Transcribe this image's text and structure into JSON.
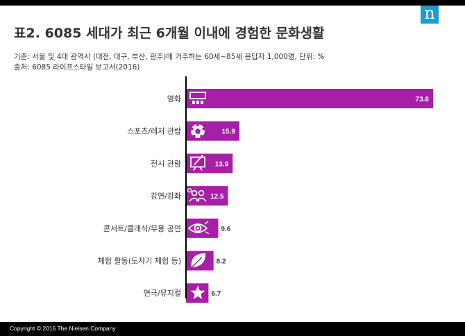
{
  "page": {
    "logo_text": "n",
    "title": "표2. 6085 세대가 최근 6개월 이내에 경험한 문화생활",
    "subtitle_lines": [
      "기준: 서울 및 4대 광역시 (대전, 대구, 부산, 광주)에 거주하는 60세~85세 응답자 1,000명, 단위: %",
      "출처: 6085 라이프스타일 보고서(2016)"
    ],
    "footer": "Copyright © 2016 The Nielsen Company"
  },
  "colors": {
    "bar": "#a61fa6",
    "icon": "#ffffff",
    "label_inside": "#ffffff",
    "label_outside": "#444444",
    "axis": "#000000",
    "logo_bg": "#1d9ad6"
  },
  "chart_data": {
    "type": "bar",
    "orientation": "horizontal",
    "categories": [
      "영화",
      "스포츠/레저 관람",
      "전시 관람",
      "강연/강좌",
      "콘서트/클래식/무용 공연",
      "체험 활동(도자기 체험 등)",
      "연극/뮤지컬"
    ],
    "values": [
      73.6,
      15.9,
      13.9,
      12.5,
      9.6,
      8.2,
      6.7
    ],
    "value_labels": [
      "73.6",
      "15.9",
      "13.9",
      "12.5",
      "9.6",
      "8.2",
      "6.7"
    ],
    "icons": [
      "theater-icon",
      "soccer-ball-icon",
      "easel-icon",
      "audience-icon",
      "eye-icon",
      "leaf-icon",
      "star-icon"
    ],
    "xlim": [
      0,
      73.6
    ],
    "grid": false,
    "legend": "none",
    "title": "표2. 6085 세대가 최근 6개월 이내에 경험한 문화생활"
  }
}
